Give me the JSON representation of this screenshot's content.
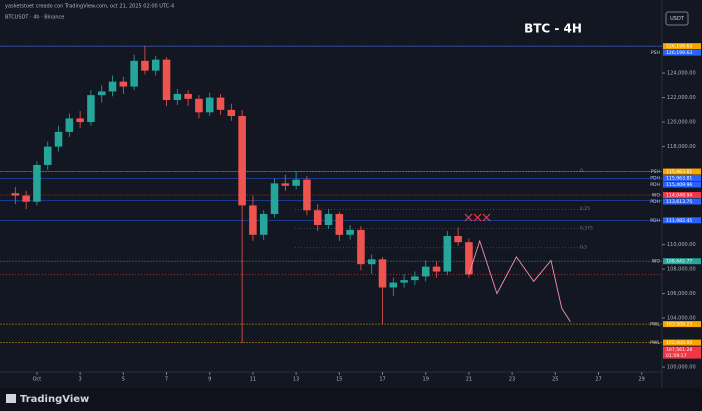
{
  "chart_data": {
    "type": "candlestick",
    "header": "yasketstoet creado con TradingView.com, oct 21, 2025 02:00 UTC-4",
    "symbol": "BTCUSDT · 4h · Binance",
    "title": "BTC - 4H",
    "currency": "USDT",
    "brand": "TradingView",
    "up_color": "#26a69a",
    "down_color": "#ef5350",
    "x": [
      0,
      0.5,
      1,
      1.5,
      2,
      2.5,
      3,
      3.5,
      4,
      4.5,
      5,
      5.5,
      6,
      6.5,
      7,
      7.5,
      8,
      8.5,
      9,
      9.5,
      10,
      10.5,
      11,
      11.5,
      12,
      12.5,
      13,
      13.5,
      14,
      14.5,
      15,
      15.5,
      16,
      16.5,
      17,
      17.5,
      18,
      18.5,
      19,
      19.5,
      20,
      20.5,
      21
    ],
    "open": [
      114200,
      114000,
      113500,
      116500,
      118000,
      119200,
      120300,
      120000,
      122200,
      122500,
      123300,
      122900,
      125000,
      124200,
      125100,
      121800,
      122300,
      121900,
      120800,
      122000,
      121000,
      120500,
      113200,
      110800,
      112500,
      115000,
      114800,
      115300,
      112800,
      111600,
      112500,
      110800,
      111200,
      108400,
      108800,
      106500,
      106900,
      107100,
      107400,
      108200,
      107800,
      110700,
      110200
    ],
    "high": [
      114700,
      114400,
      116800,
      118400,
      119700,
      120700,
      120900,
      122600,
      123000,
      123800,
      123700,
      125500,
      126200,
      125400,
      125300,
      122700,
      122600,
      122200,
      122400,
      122300,
      121500,
      121000,
      114000,
      112800,
      115400,
      115700,
      116000,
      115600,
      113300,
      112900,
      112700,
      111600,
      111500,
      109200,
      109000,
      107300,
      107600,
      107800,
      108700,
      108600,
      111100,
      111400,
      110500
    ],
    "low": [
      113300,
      112900,
      113200,
      116100,
      117600,
      118800,
      119500,
      119700,
      121600,
      122100,
      122300,
      122600,
      123900,
      123800,
      121300,
      121400,
      121300,
      120300,
      120500,
      120600,
      120100,
      101960,
      110300,
      110400,
      112200,
      114400,
      114500,
      112400,
      111100,
      111300,
      110300,
      110400,
      107900,
      107600,
      103500,
      105800,
      106500,
      106700,
      107000,
      107300,
      107500,
      109900,
      107300
    ],
    "close": [
      114000,
      113500,
      116500,
      118000,
      119200,
      120300,
      120000,
      122200,
      122500,
      123300,
      122900,
      125000,
      124200,
      125100,
      121800,
      122300,
      121900,
      120800,
      122000,
      121000,
      120500,
      113200,
      110800,
      112500,
      115000,
      114800,
      115300,
      112800,
      111600,
      112500,
      110800,
      111200,
      108400,
      108800,
      106500,
      106900,
      107100,
      107400,
      108200,
      107800,
      110700,
      110200,
      107561.28
    ],
    "xlim": [
      -0.71,
      29.94
    ],
    "xticks": [
      {
        "value": 1,
        "label": "Oct"
      },
      3,
      5,
      7,
      9,
      11,
      13,
      15,
      17,
      19,
      21,
      23,
      25,
      27,
      29
    ],
    "ylim": [
      99600,
      129150
    ],
    "yticks": [
      {
        "value": 124000,
        "label": "124,000.00"
      },
      {
        "value": 122000,
        "label": "122,000.00"
      },
      {
        "value": 120000,
        "label": "120,000.00"
      },
      {
        "value": 118000,
        "label": "118,000.00"
      },
      {
        "value": 110000,
        "label": "110,000.00"
      },
      {
        "value": 108000,
        "label": "108,000.00"
      },
      {
        "value": 106000,
        "label": "106,000.00"
      },
      {
        "value": 104000,
        "label": "104,000.00"
      },
      {
        "value": 100000,
        "label": "100,000.00"
      }
    ],
    "grid": false,
    "levels": [
      {
        "value": 126199.63,
        "label": "126,199.63",
        "color": "#f7a600"
      },
      {
        "name": "PSH",
        "value": 126199.63,
        "label": "126,199.63",
        "color": "#2962ff"
      },
      {
        "name": "PSH",
        "value": 115963.81,
        "label": "115,963.81",
        "color": "#f7a600"
      },
      {
        "name": "PDH",
        "value": 115963.81,
        "label": "115,963.81",
        "color": "#2962ff"
      },
      {
        "name": "PDH",
        "value": 115409.96,
        "label": "115,409.96",
        "color": "#2962ff"
      },
      {
        "name": "WO",
        "value": 114048.94,
        "label": "114,048.94",
        "color": "#f23645"
      },
      {
        "name": "PDH",
        "value": 113613.75,
        "label": "113,613.75",
        "color": "#2962ff"
      },
      {
        "name": "PDH",
        "value": 111982.45,
        "label": "111,982.45",
        "color": "#2962ff"
      },
      {
        "name": "WO",
        "value": 108642.77,
        "label": "108,642.77",
        "color": "#26a69a"
      },
      {
        "name": "PWL",
        "value": 103509.23,
        "label": "103,509.23",
        "color": "#f7a600"
      },
      {
        "name": "PWL",
        "value": 102000,
        "label": "102,000.00",
        "color": "#f7a600"
      }
    ],
    "current_price": {
      "value": 107561.28,
      "label": "107,561.28",
      "countdown": "01:59:17",
      "color": "#f23645"
    },
    "fib": {
      "range": [
        115963.81,
        103509.23
      ],
      "levels": [
        0,
        0.25,
        0.375,
        0.5
      ]
    },
    "projection": {
      "color": "#f48fb1",
      "x": [
        21,
        21.5,
        22.3,
        23.2,
        24,
        24.8,
        25.3,
        25.7
      ],
      "values": [
        107561.28,
        110300,
        106000,
        109000,
        107000,
        108700,
        104800,
        103700
      ]
    }
  }
}
